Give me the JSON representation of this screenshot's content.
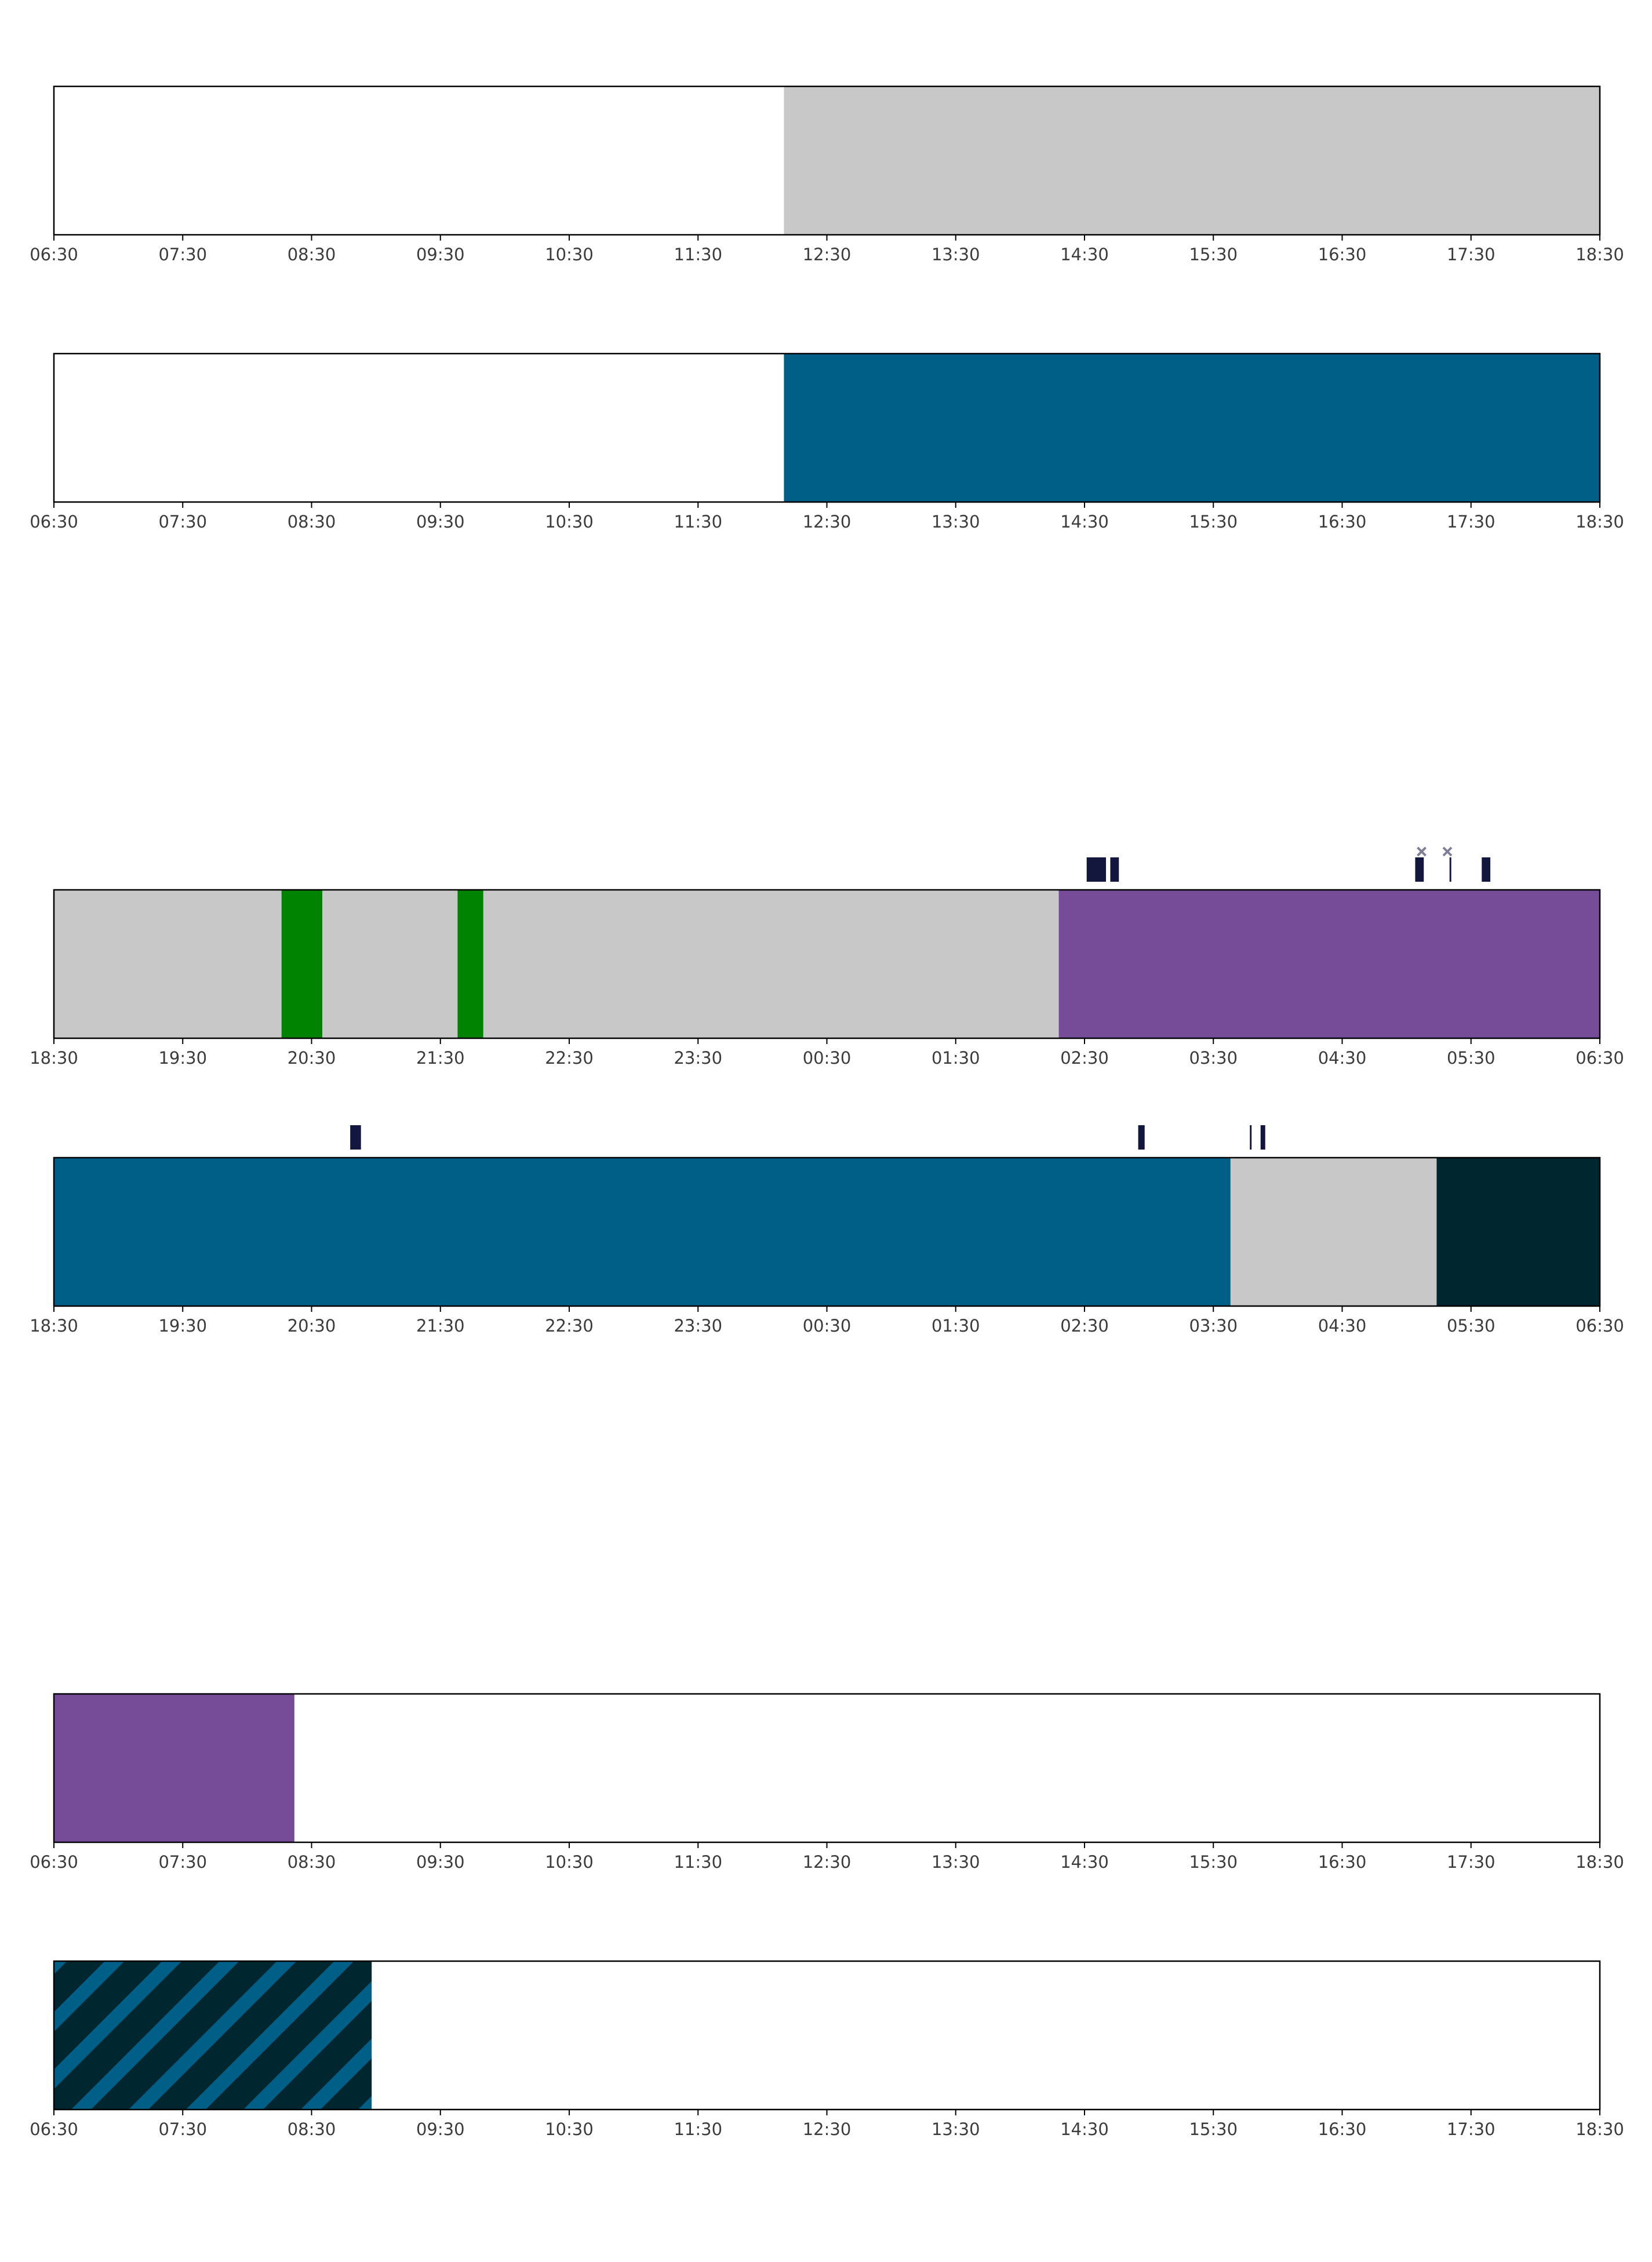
{
  "colors": {
    "empty": "#ffffff",
    "grey": "#c8c8c8",
    "blue": "#005f87",
    "purple": "#764c98",
    "green": "#008300",
    "dark_teal": "#00262f",
    "marker_navy": "#13173d",
    "marker_cross": "#7e7e96",
    "axis": "#000000",
    "tick_text": "#3c3c3c"
  },
  "chart_data": [
    {
      "type": "timeline",
      "name": "strip-1",
      "x_start": "06:30",
      "x_end": "18:30",
      "tick_labels": [
        "06:30",
        "07:30",
        "08:30",
        "09:30",
        "10:30",
        "11:30",
        "12:30",
        "13:30",
        "14:30",
        "15:30",
        "16:30",
        "17:30",
        "18:30"
      ],
      "segments": [
        {
          "start": "12:10",
          "end": "18:30",
          "color": "grey"
        }
      ],
      "markers": []
    },
    {
      "type": "timeline",
      "name": "strip-2",
      "x_start": "06:30",
      "x_end": "18:30",
      "tick_labels": [
        "06:30",
        "07:30",
        "08:30",
        "09:30",
        "10:30",
        "11:30",
        "12:30",
        "13:30",
        "14:30",
        "15:30",
        "16:30",
        "17:30",
        "18:30"
      ],
      "segments": [
        {
          "start": "12:10",
          "end": "18:30",
          "color": "blue"
        }
      ],
      "markers": []
    },
    {
      "type": "timeline",
      "name": "strip-3",
      "x_start": "18:30",
      "x_end": "06:30",
      "tick_labels": [
        "18:30",
        "19:30",
        "20:30",
        "21:30",
        "22:30",
        "23:30",
        "00:30",
        "01:30",
        "02:30",
        "03:30",
        "04:30",
        "05:30",
        "06:30"
      ],
      "segments": [
        {
          "start": "18:30",
          "end": "20:16",
          "color": "grey"
        },
        {
          "start": "20:16",
          "end": "20:35",
          "color": "green"
        },
        {
          "start": "20:35",
          "end": "21:38",
          "color": "grey"
        },
        {
          "start": "21:38",
          "end": "21:50",
          "color": "green"
        },
        {
          "start": "21:50",
          "end": "02:18",
          "color": "grey"
        },
        {
          "start": "02:18",
          "end": "06:30",
          "color": "purple"
        }
      ],
      "markers": [
        {
          "start": "02:31",
          "end": "02:40",
          "style": "bar"
        },
        {
          "start": "02:42",
          "end": "02:46",
          "style": "bar"
        },
        {
          "start": "05:04",
          "end": "05:08",
          "style": "bar"
        },
        {
          "start": "05:20",
          "end": "05:21",
          "style": "line"
        },
        {
          "start": "05:35",
          "end": "05:39",
          "style": "bar"
        },
        {
          "at": "05:07",
          "style": "cross"
        },
        {
          "at": "05:19",
          "style": "cross"
        }
      ]
    },
    {
      "type": "timeline",
      "name": "strip-4",
      "x_start": "18:30",
      "x_end": "06:30",
      "tick_labels": [
        "18:30",
        "19:30",
        "20:30",
        "21:30",
        "22:30",
        "23:30",
        "00:30",
        "01:30",
        "02:30",
        "03:30",
        "04:30",
        "05:30",
        "06:30"
      ],
      "segments": [
        {
          "start": "18:30",
          "end": "03:38",
          "color": "blue"
        },
        {
          "start": "03:38",
          "end": "05:14",
          "color": "grey"
        },
        {
          "start": "05:14",
          "end": "06:30",
          "color": "dark_teal"
        }
      ],
      "markers": [
        {
          "start": "20:48",
          "end": "20:53",
          "style": "bar"
        },
        {
          "start": "02:55",
          "end": "02:58",
          "style": "bar"
        },
        {
          "start": "03:47",
          "end": "03:48",
          "style": "line"
        },
        {
          "start": "03:52",
          "end": "03:54",
          "style": "bar"
        }
      ]
    },
    {
      "type": "timeline",
      "name": "strip-5",
      "x_start": "06:30",
      "x_end": "18:30",
      "tick_labels": [
        "06:30",
        "07:30",
        "08:30",
        "09:30",
        "10:30",
        "11:30",
        "12:30",
        "13:30",
        "14:30",
        "15:30",
        "16:30",
        "17:30",
        "18:30"
      ],
      "segments": [
        {
          "start": "06:30",
          "end": "08:22",
          "color": "purple"
        }
      ],
      "markers": []
    },
    {
      "type": "timeline",
      "name": "strip-6",
      "x_start": "06:30",
      "x_end": "18:30",
      "tick_labels": [
        "06:30",
        "07:30",
        "08:30",
        "09:30",
        "10:30",
        "11:30",
        "12:30",
        "13:30",
        "14:30",
        "15:30",
        "16:30",
        "17:30",
        "18:30"
      ],
      "segments": [
        {
          "start": "06:30",
          "end": "08:58",
          "color": "dark_teal",
          "hatch": "blue"
        }
      ],
      "markers": []
    }
  ]
}
